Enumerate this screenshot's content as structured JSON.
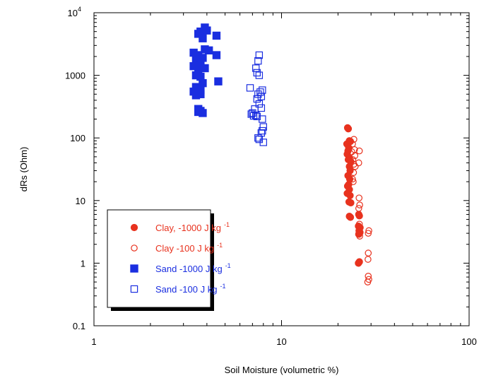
{
  "chart_data": {
    "type": "scatter",
    "xlabel": "Soil Moisture (volumetric %)",
    "ylabel": "dRs (Ohm)",
    "xscale": "log",
    "yscale": "log",
    "xlim": [
      1,
      100
    ],
    "ylim": [
      0.1,
      10000
    ],
    "x_ticks": [
      {
        "value": 1,
        "label": "1"
      },
      {
        "value": 10,
        "label": "10"
      },
      {
        "value": 100,
        "label": "100"
      }
    ],
    "y_ticks": [
      {
        "value": 0.1,
        "label": "0.1"
      },
      {
        "value": 1,
        "label": "1"
      },
      {
        "value": 10,
        "label": "10"
      },
      {
        "value": 100,
        "label": "100"
      },
      {
        "value": 1000,
        "label": "1000"
      },
      {
        "value": 10000,
        "label_base": "10",
        "label_exp": "4"
      }
    ],
    "legend_position": "lower-left",
    "series": [
      {
        "name": "Clay, -1000 J kg",
        "name_sup": "-1",
        "marker": "filled-circle",
        "color": "#e8321e",
        "points": [
          [
            22.5,
            145
          ],
          [
            22.7,
            140
          ],
          [
            22.3,
            80
          ],
          [
            22.8,
            70
          ],
          [
            22.6,
            62
          ],
          [
            22.4,
            55
          ],
          [
            23.0,
            90
          ],
          [
            23.3,
            88
          ],
          [
            22.9,
            48
          ],
          [
            23.4,
            42
          ],
          [
            22.7,
            45
          ],
          [
            23.0,
            35
          ],
          [
            23.2,
            30
          ],
          [
            22.6,
            25
          ],
          [
            23.1,
            22
          ],
          [
            22.8,
            18
          ],
          [
            22.5,
            17
          ],
          [
            23.0,
            15
          ],
          [
            22.4,
            13
          ],
          [
            23.2,
            12
          ],
          [
            22.9,
            9.5
          ],
          [
            23.4,
            9.2
          ],
          [
            23.0,
            5.6
          ],
          [
            23.3,
            5.4
          ],
          [
            25.8,
            6.0
          ],
          [
            26.0,
            5.7
          ],
          [
            25.7,
            3.9
          ],
          [
            26.1,
            3.6
          ],
          [
            25.9,
            3.3
          ],
          [
            26.2,
            3.1
          ],
          [
            25.8,
            2.9
          ],
          [
            26.0,
            1.05
          ],
          [
            25.7,
            1.0
          ]
        ]
      },
      {
        "name": "Clay -100 J kg",
        "name_sup": "-1",
        "marker": "open-circle",
        "color": "#e8321e",
        "points": [
          [
            24.3,
            95
          ],
          [
            23.9,
            80
          ],
          [
            24.5,
            65
          ],
          [
            23.7,
            60
          ],
          [
            26.0,
            62
          ],
          [
            24.6,
            52
          ],
          [
            24.0,
            45
          ],
          [
            25.8,
            40
          ],
          [
            24.3,
            38
          ],
          [
            24.7,
            35
          ],
          [
            24.2,
            28
          ],
          [
            23.9,
            22
          ],
          [
            24.1,
            20
          ],
          [
            25.9,
            11
          ],
          [
            26.1,
            8.5
          ],
          [
            25.8,
            7.5
          ],
          [
            26.0,
            4.2
          ],
          [
            26.3,
            3.7
          ],
          [
            29.2,
            3.3
          ],
          [
            29.0,
            3.0
          ],
          [
            26.1,
            2.7
          ],
          [
            25.9,
            2.9
          ],
          [
            29.0,
            1.45
          ],
          [
            28.9,
            1.15
          ],
          [
            29.0,
            0.62
          ],
          [
            29.2,
            0.55
          ],
          [
            28.8,
            0.5
          ]
        ]
      },
      {
        "name": "Sand -1000 J kg",
        "name_sup": "-1",
        "marker": "filled-square",
        "color": "#1a2ee0",
        "points": [
          [
            3.9,
            5800
          ],
          [
            3.7,
            5000
          ],
          [
            3.6,
            4600
          ],
          [
            4.0,
            5200
          ],
          [
            4.5,
            4300
          ],
          [
            3.8,
            3900
          ],
          [
            3.4,
            2300
          ],
          [
            3.6,
            2100
          ],
          [
            3.9,
            2600
          ],
          [
            4.1,
            2500
          ],
          [
            4.5,
            2100
          ],
          [
            3.5,
            1800
          ],
          [
            3.8,
            1900
          ],
          [
            3.7,
            1600
          ],
          [
            3.4,
            1400
          ],
          [
            3.6,
            1200
          ],
          [
            3.9,
            1300
          ],
          [
            3.5,
            1000
          ],
          [
            3.7,
            950
          ],
          [
            4.6,
            800
          ],
          [
            3.8,
            750
          ],
          [
            3.5,
            650
          ],
          [
            3.6,
            600
          ],
          [
            3.7,
            580
          ],
          [
            3.4,
            550
          ],
          [
            3.6,
            520
          ],
          [
            3.7,
            500
          ],
          [
            3.5,
            480
          ],
          [
            3.6,
            290
          ],
          [
            3.7,
            270
          ],
          [
            3.6,
            260
          ],
          [
            3.8,
            250
          ]
        ]
      },
      {
        "name": "Sand -100 J kg",
        "name_sup": "-1",
        "marker": "open-square",
        "color": "#1a2ee0",
        "points": [
          [
            7.6,
            2100
          ],
          [
            7.5,
            1700
          ],
          [
            7.3,
            1300
          ],
          [
            7.4,
            1100
          ],
          [
            7.6,
            1000
          ],
          [
            6.8,
            630
          ],
          [
            7.9,
            580
          ],
          [
            7.7,
            540
          ],
          [
            7.5,
            500
          ],
          [
            7.8,
            460
          ],
          [
            7.4,
            420
          ],
          [
            7.6,
            350
          ],
          [
            7.8,
            300
          ],
          [
            7.2,
            290
          ],
          [
            7.0,
            250
          ],
          [
            6.9,
            240
          ],
          [
            7.3,
            230
          ],
          [
            7.1,
            225
          ],
          [
            7.4,
            220
          ],
          [
            7.9,
            200
          ],
          [
            8.0,
            150
          ],
          [
            7.9,
            130
          ],
          [
            7.8,
            120
          ],
          [
            7.5,
            100
          ],
          [
            7.6,
            95
          ],
          [
            8.0,
            85
          ]
        ]
      }
    ]
  }
}
